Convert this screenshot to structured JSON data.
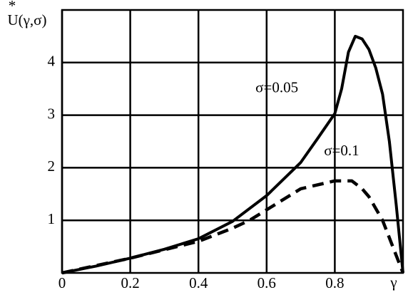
{
  "chart_data": {
    "type": "line",
    "ylabel": "U(γ,σ)",
    "ylabel_mark": "*",
    "xlabel": "γ",
    "xlim": [
      0,
      1
    ],
    "ylim": [
      0,
      5
    ],
    "xticks": [
      0,
      0.2,
      0.4,
      0.6,
      0.8
    ],
    "yticks": [
      1,
      2,
      3,
      4
    ],
    "grid": true,
    "series": [
      {
        "name": "σ=0.05",
        "color": "#000000",
        "dash": false,
        "x": [
          0,
          0.1,
          0.2,
          0.3,
          0.4,
          0.5,
          0.6,
          0.7,
          0.75,
          0.8,
          0.82,
          0.84,
          0.86,
          0.88,
          0.9,
          0.92,
          0.94,
          0.96,
          0.98,
          1.0
        ],
        "values": [
          0,
          0.13,
          0.28,
          0.45,
          0.65,
          0.98,
          1.47,
          2.1,
          2.56,
          3.03,
          3.5,
          4.2,
          4.5,
          4.45,
          4.25,
          3.9,
          3.4,
          2.5,
          1.3,
          0
        ]
      },
      {
        "name": "σ=0.1",
        "color": "#000000",
        "dash": true,
        "x": [
          0,
          0.2,
          0.4,
          0.5,
          0.55,
          0.6,
          0.7,
          0.8,
          0.85,
          0.88,
          0.9,
          0.94,
          0.97,
          1.0
        ],
        "values": [
          0,
          0.28,
          0.6,
          0.85,
          1.0,
          1.2,
          1.6,
          1.75,
          1.75,
          1.6,
          1.45,
          1.0,
          0.5,
          0
        ]
      }
    ]
  }
}
